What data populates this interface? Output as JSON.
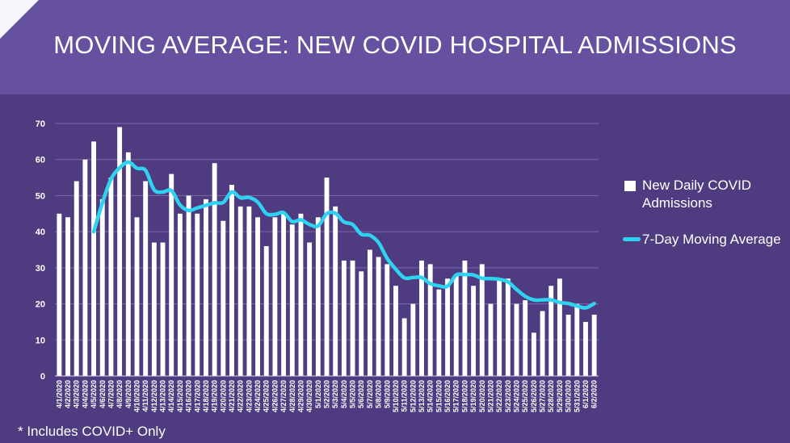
{
  "title": "MOVING AVERAGE: NEW COVID HOSPITAL ADMISSIONS",
  "footnote": "* Includes COVID+ Only",
  "colors": {
    "background": "#4e3b80",
    "banner": "#6650a0",
    "bar": "#ffffff",
    "line": "#2fd2f0",
    "grid": "#7a6aa6"
  },
  "chart_data": {
    "type": "bar",
    "categories": [
      "4/1/2020",
      "4/2/2020",
      "4/3/2020",
      "4/4/2020",
      "4/5/2020",
      "4/6/2020",
      "4/7/2020",
      "4/8/2020",
      "4/9/2020",
      "4/10/2020",
      "4/11/2020",
      "4/12/2020",
      "4/13/2020",
      "4/14/2020",
      "4/15/2020",
      "4/16/2020",
      "4/17/2020",
      "4/18/2020",
      "4/19/2020",
      "4/20/2020",
      "4/21/2020",
      "4/22/2020",
      "4/23/2020",
      "4/24/2020",
      "4/25/2020",
      "4/26/2020",
      "4/27/2020",
      "4/28/2020",
      "4/29/2020",
      "4/30/2020",
      "5/1/2020",
      "5/2/2020",
      "5/3/2020",
      "5/4/2020",
      "5/5/2020",
      "5/6/2020",
      "5/7/2020",
      "5/8/2020",
      "5/9/2020",
      "5/10/2020",
      "5/11/2020",
      "5/12/2020",
      "5/13/2020",
      "5/14/2020",
      "5/15/2020",
      "5/16/2020",
      "5/17/2020",
      "5/18/2020",
      "5/19/2020",
      "5/20/2020",
      "5/21/2020",
      "5/22/2020",
      "5/23/2020",
      "5/24/2020",
      "5/25/2020",
      "5/26/2020",
      "5/27/2020",
      "5/28/2020",
      "5/29/2020",
      "5/30/2020",
      "5/31/2020",
      "6/1/2020",
      "6/2/2020"
    ],
    "series": [
      {
        "name": "New Daily COVID Admissions",
        "type": "bar",
        "values": [
          45,
          44,
          54,
          60,
          65,
          49,
          55,
          69,
          62,
          44,
          54,
          37,
          37,
          56,
          45,
          50,
          45,
          49,
          59,
          43,
          53,
          47,
          47,
          44,
          36,
          44,
          45,
          42,
          45,
          37,
          44,
          55,
          47,
          32,
          32,
          29,
          35,
          33,
          31,
          25,
          16,
          20,
          32,
          31,
          24,
          27,
          28,
          32,
          25,
          31,
          20,
          27,
          27,
          20,
          21,
          12,
          18,
          25,
          27,
          17,
          20,
          15,
          17
        ]
      },
      {
        "name": "7-Day Moving Average",
        "type": "line",
        "values": [
          null,
          null,
          null,
          null,
          40,
          48,
          54.6,
          57.7,
          59.3,
          57.6,
          57,
          51.6,
          51,
          51.4,
          47.4,
          45.9,
          46.6,
          47.3,
          48,
          48.1,
          51,
          49.4,
          49.5,
          48.2,
          45,
          44.8,
          45.3,
          42.8,
          43.3,
          42,
          41.6,
          45,
          45.1,
          42.7,
          42,
          39.3,
          39,
          37,
          32.6,
          29.6,
          27.2,
          27.3,
          27.3,
          25.6,
          25,
          24.9,
          28,
          28.1,
          28,
          27.1,
          27,
          26.8,
          26.1,
          24,
          22.1,
          21.1,
          21.1,
          21.1,
          20.4,
          20.1,
          19.4,
          18.9,
          20.1
        ]
      }
    ],
    "ylim": [
      0,
      70
    ],
    "yticks": [
      0,
      10,
      20,
      30,
      40,
      50,
      60,
      70
    ],
    "legend": "right"
  }
}
